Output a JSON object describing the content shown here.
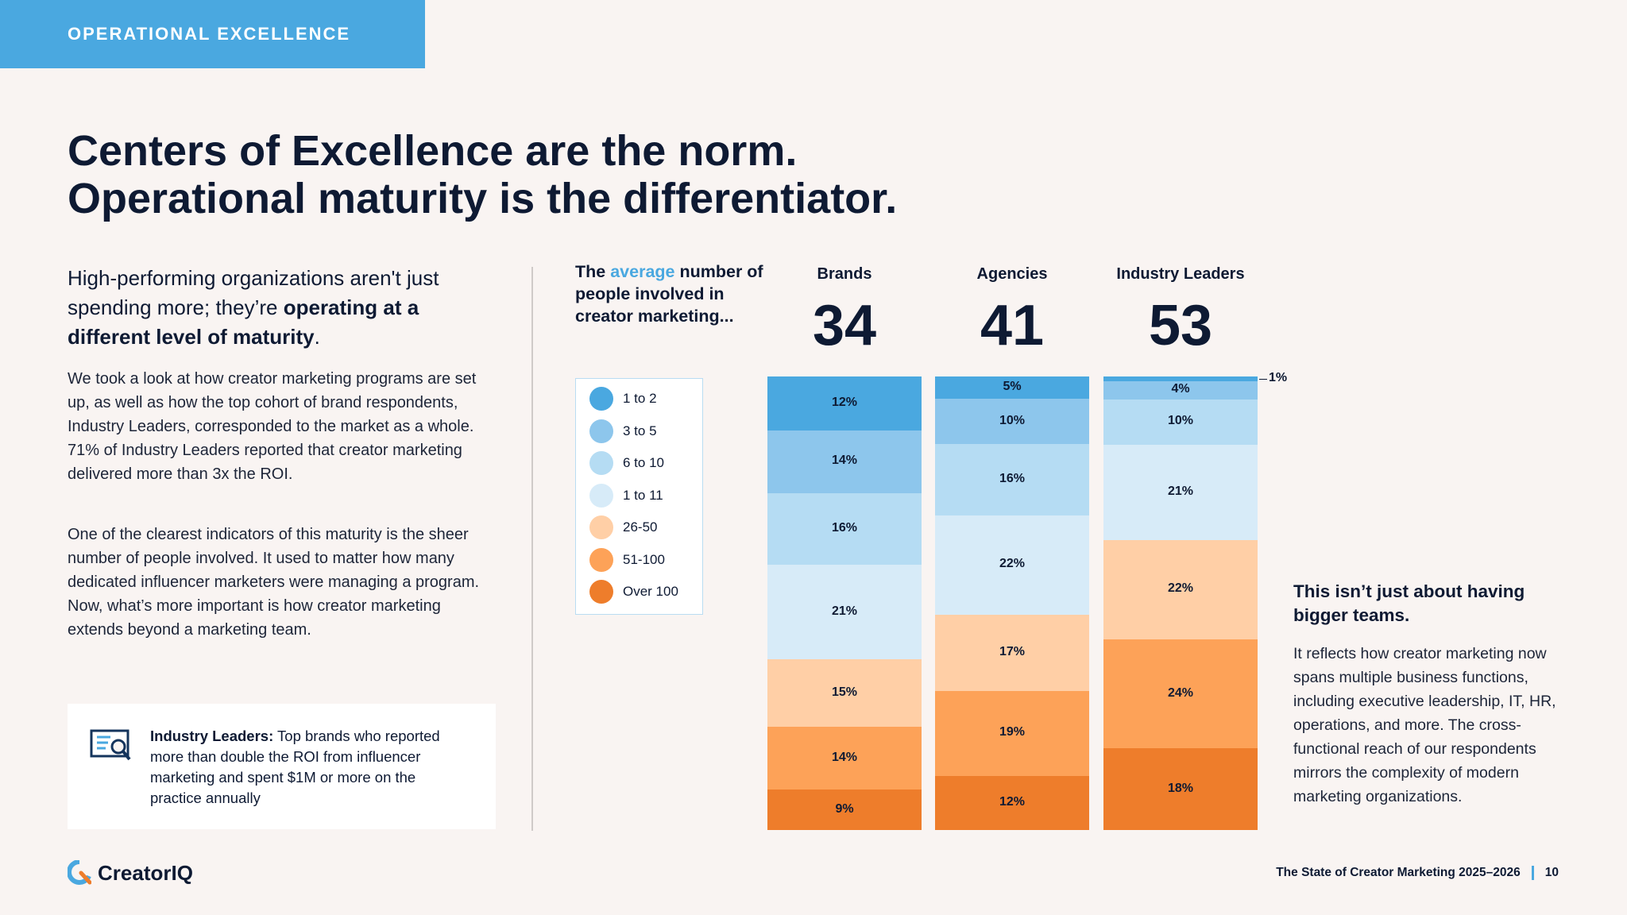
{
  "header": {
    "tag": "OPERATIONAL EXCELLENCE",
    "headline_line1": "Centers of Excellence are the norm.",
    "headline_line2": "Operational maturity is the differentiator."
  },
  "lead": {
    "part1": "High-performing organizations aren't just spending more; they’re ",
    "bold": "operating at a different level of maturity",
    "part2": "."
  },
  "body": {
    "p1": "We took a look at how creator marketing programs are set up, as well as how the top cohort of brand respondents, Industry Leaders, corresponded to the market as a whole. 71% of Industry Leaders reported that creator marketing delivered more than 3x the ROI.",
    "p2": "One of the clearest indicators of this maturity is the sheer number of people involved. It used to matter how many dedicated influencer marketers were managing a program. Now, what’s more important is how creator marketing extends beyond a marketing team."
  },
  "callout": {
    "label": "Industry Leaders:",
    "text": " Top brands who reported more than double the ROI from influencer marketing and spent $1M or more on the practice annually"
  },
  "avg_intro": {
    "pre": "The ",
    "highlight": "average",
    "post": " number of people involved in creator marketing..."
  },
  "colors": {
    "accent": "#4aa8e0",
    "segments": [
      "#4aa8e0",
      "#8dc6ec",
      "#b5dcf3",
      "#d7ebf8",
      "#ffcfa6",
      "#fda258",
      "#ee7d2b"
    ]
  },
  "chart_data": {
    "type": "bar",
    "stacked": true,
    "orientation": "vertical",
    "categories": [
      "Brands",
      "Agencies",
      "Industry Leaders"
    ],
    "averages": [
      "34",
      "41",
      "53"
    ],
    "legend": [
      "1 to 2",
      "3 to 5",
      "6 to 10",
      "1 to 11",
      "26-50",
      "51-100",
      "Over 100"
    ],
    "series": [
      {
        "name": "1 to 2",
        "values": [
          12,
          5,
          1
        ],
        "labels": [
          "12%",
          "5%",
          "1%"
        ]
      },
      {
        "name": "3 to 5",
        "values": [
          14,
          10,
          4
        ],
        "labels": [
          "14%",
          "10%",
          "4%"
        ]
      },
      {
        "name": "6 to 10",
        "values": [
          16,
          16,
          10
        ],
        "labels": [
          "16%",
          "16%",
          "10%"
        ]
      },
      {
        "name": "1 to 11",
        "values": [
          21,
          22,
          21
        ],
        "labels": [
          "21%",
          "22%",
          "21%"
        ]
      },
      {
        "name": "26-50",
        "values": [
          15,
          17,
          22
        ],
        "labels": [
          "15%",
          "17%",
          "22%"
        ]
      },
      {
        "name": "51-100",
        "values": [
          14,
          19,
          24
        ],
        "labels": [
          "14%",
          "19%",
          "24%"
        ]
      },
      {
        "name": "Over 100",
        "values": [
          9,
          12,
          18
        ],
        "labels": [
          "9%",
          "12%",
          "18%"
        ]
      }
    ]
  },
  "side": {
    "title": "This isn’t just about having bigger teams.",
    "body": "It reflects how creator marketing now spans multiple business functions, including executive leadership, IT, HR, operations, and more. The cross-functional reach of our respondents mirrors the complexity of modern marketing organizations."
  },
  "footer": {
    "logo_text": "CreatorIQ",
    "report_title": "The State of Creator Marketing 2025–2026",
    "page_number": "10"
  }
}
